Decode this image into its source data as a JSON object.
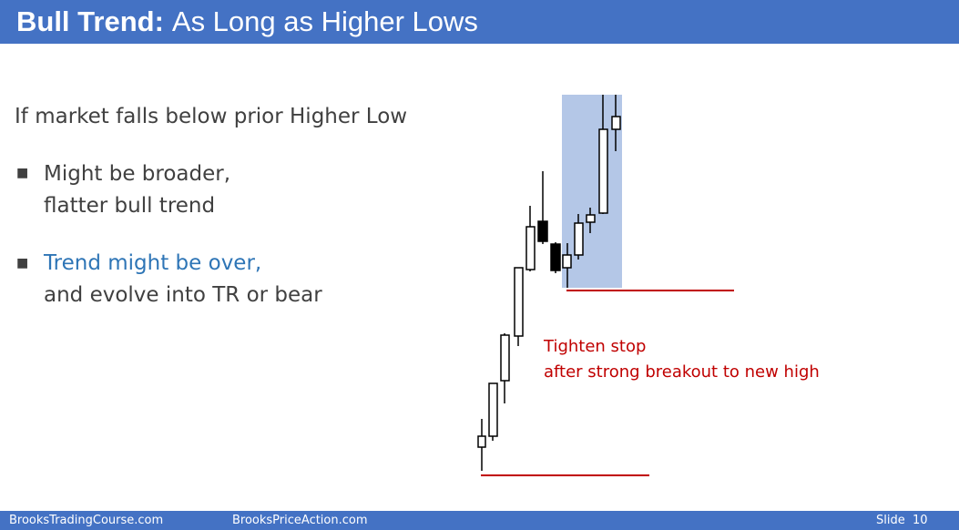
{
  "slide": {
    "title_bold": "Bull Trend:",
    "title_rest": "As Long as Higher Lows",
    "intro": "If market falls below prior Higher Low",
    "bullets": [
      {
        "marker": "■",
        "lines": [
          "Might be broader,",
          "flatter bull trend"
        ]
      },
      {
        "marker": "■",
        "accent": "Trend might be over,",
        "line2": "and evolve into TR or bear"
      }
    ]
  },
  "chart": {
    "note_line1": "Tighten stop",
    "note_line2": "after strong breakout to new high",
    "colors": {
      "candle_outline": "#000000",
      "bear_body": "#000000",
      "bull_body": "#ffffff",
      "highlight": "#b4c7e7",
      "line": "#c00000"
    }
  },
  "footer": {
    "left": "BrooksTradingCourse.com",
    "center": "BrooksPriceAction.com",
    "slide_label": "Slide",
    "slide_number": "10"
  }
}
